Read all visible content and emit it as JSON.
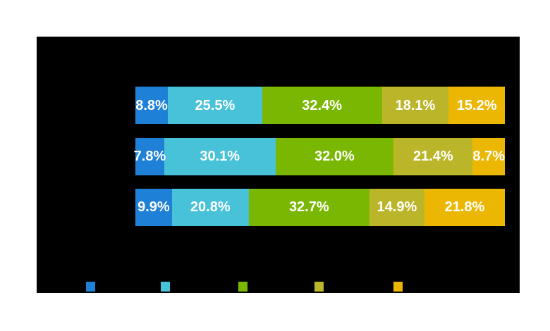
{
  "page": {
    "background": "#ffffff"
  },
  "chart_data": {
    "type": "bar",
    "orientation": "horizontal",
    "stacked": true,
    "value_unit": "percent",
    "plot_background": "#000000",
    "grid": false,
    "legend_position": "bottom",
    "palette": [
      "#1e80d6",
      "#47c2d8",
      "#7ab702",
      "#bbb52a",
      "#ecb703"
    ],
    "series_color_names": [
      "blue",
      "cyan",
      "green",
      "olive",
      "gold"
    ],
    "rows": [
      {
        "segments": [
          {
            "value": 8.8,
            "label": "8.8%"
          },
          {
            "value": 25.5,
            "label": "25.5%"
          },
          {
            "value": 32.4,
            "label": "32.4%"
          },
          {
            "value": 18.1,
            "label": "18.1%"
          },
          {
            "value": 15.2,
            "label": "15.2%"
          }
        ]
      },
      {
        "segments": [
          {
            "value": 7.8,
            "label": "7.8%"
          },
          {
            "value": 30.1,
            "label": "30.1%"
          },
          {
            "value": 32.0,
            "label": "32.0%"
          },
          {
            "value": 21.4,
            "label": "21.4%"
          },
          {
            "value": 8.7,
            "label": "8.7%"
          }
        ]
      },
      {
        "segments": [
          {
            "value": 9.9,
            "label": "9.9%"
          },
          {
            "value": 20.8,
            "label": "20.8%"
          },
          {
            "value": 32.7,
            "label": "32.7%"
          },
          {
            "value": 14.9,
            "label": "14.9%"
          },
          {
            "value": 21.8,
            "label": "21.8%"
          }
        ]
      }
    ],
    "series": [
      {
        "name": "blue",
        "values": [
          8.8,
          7.8,
          9.9
        ]
      },
      {
        "name": "cyan",
        "values": [
          25.5,
          30.1,
          20.8
        ]
      },
      {
        "name": "green",
        "values": [
          32.4,
          32.0,
          32.7
        ]
      },
      {
        "name": "olive",
        "values": [
          18.1,
          21.4,
          14.9
        ]
      },
      {
        "name": "gold",
        "values": [
          15.2,
          8.7,
          21.8
        ]
      }
    ]
  }
}
